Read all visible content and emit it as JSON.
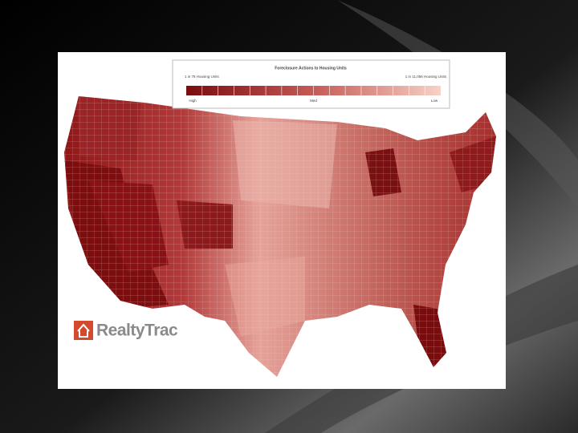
{
  "legend": {
    "title": "Foreclosure Actions to Housing Units",
    "left_label": "1 in 78 Housing Units",
    "right_label": "1 in 11,056 Housing Units",
    "scale_labels": [
      "High",
      "Med",
      "Low"
    ]
  },
  "logo": {
    "text": "RealtyTrac"
  }
}
